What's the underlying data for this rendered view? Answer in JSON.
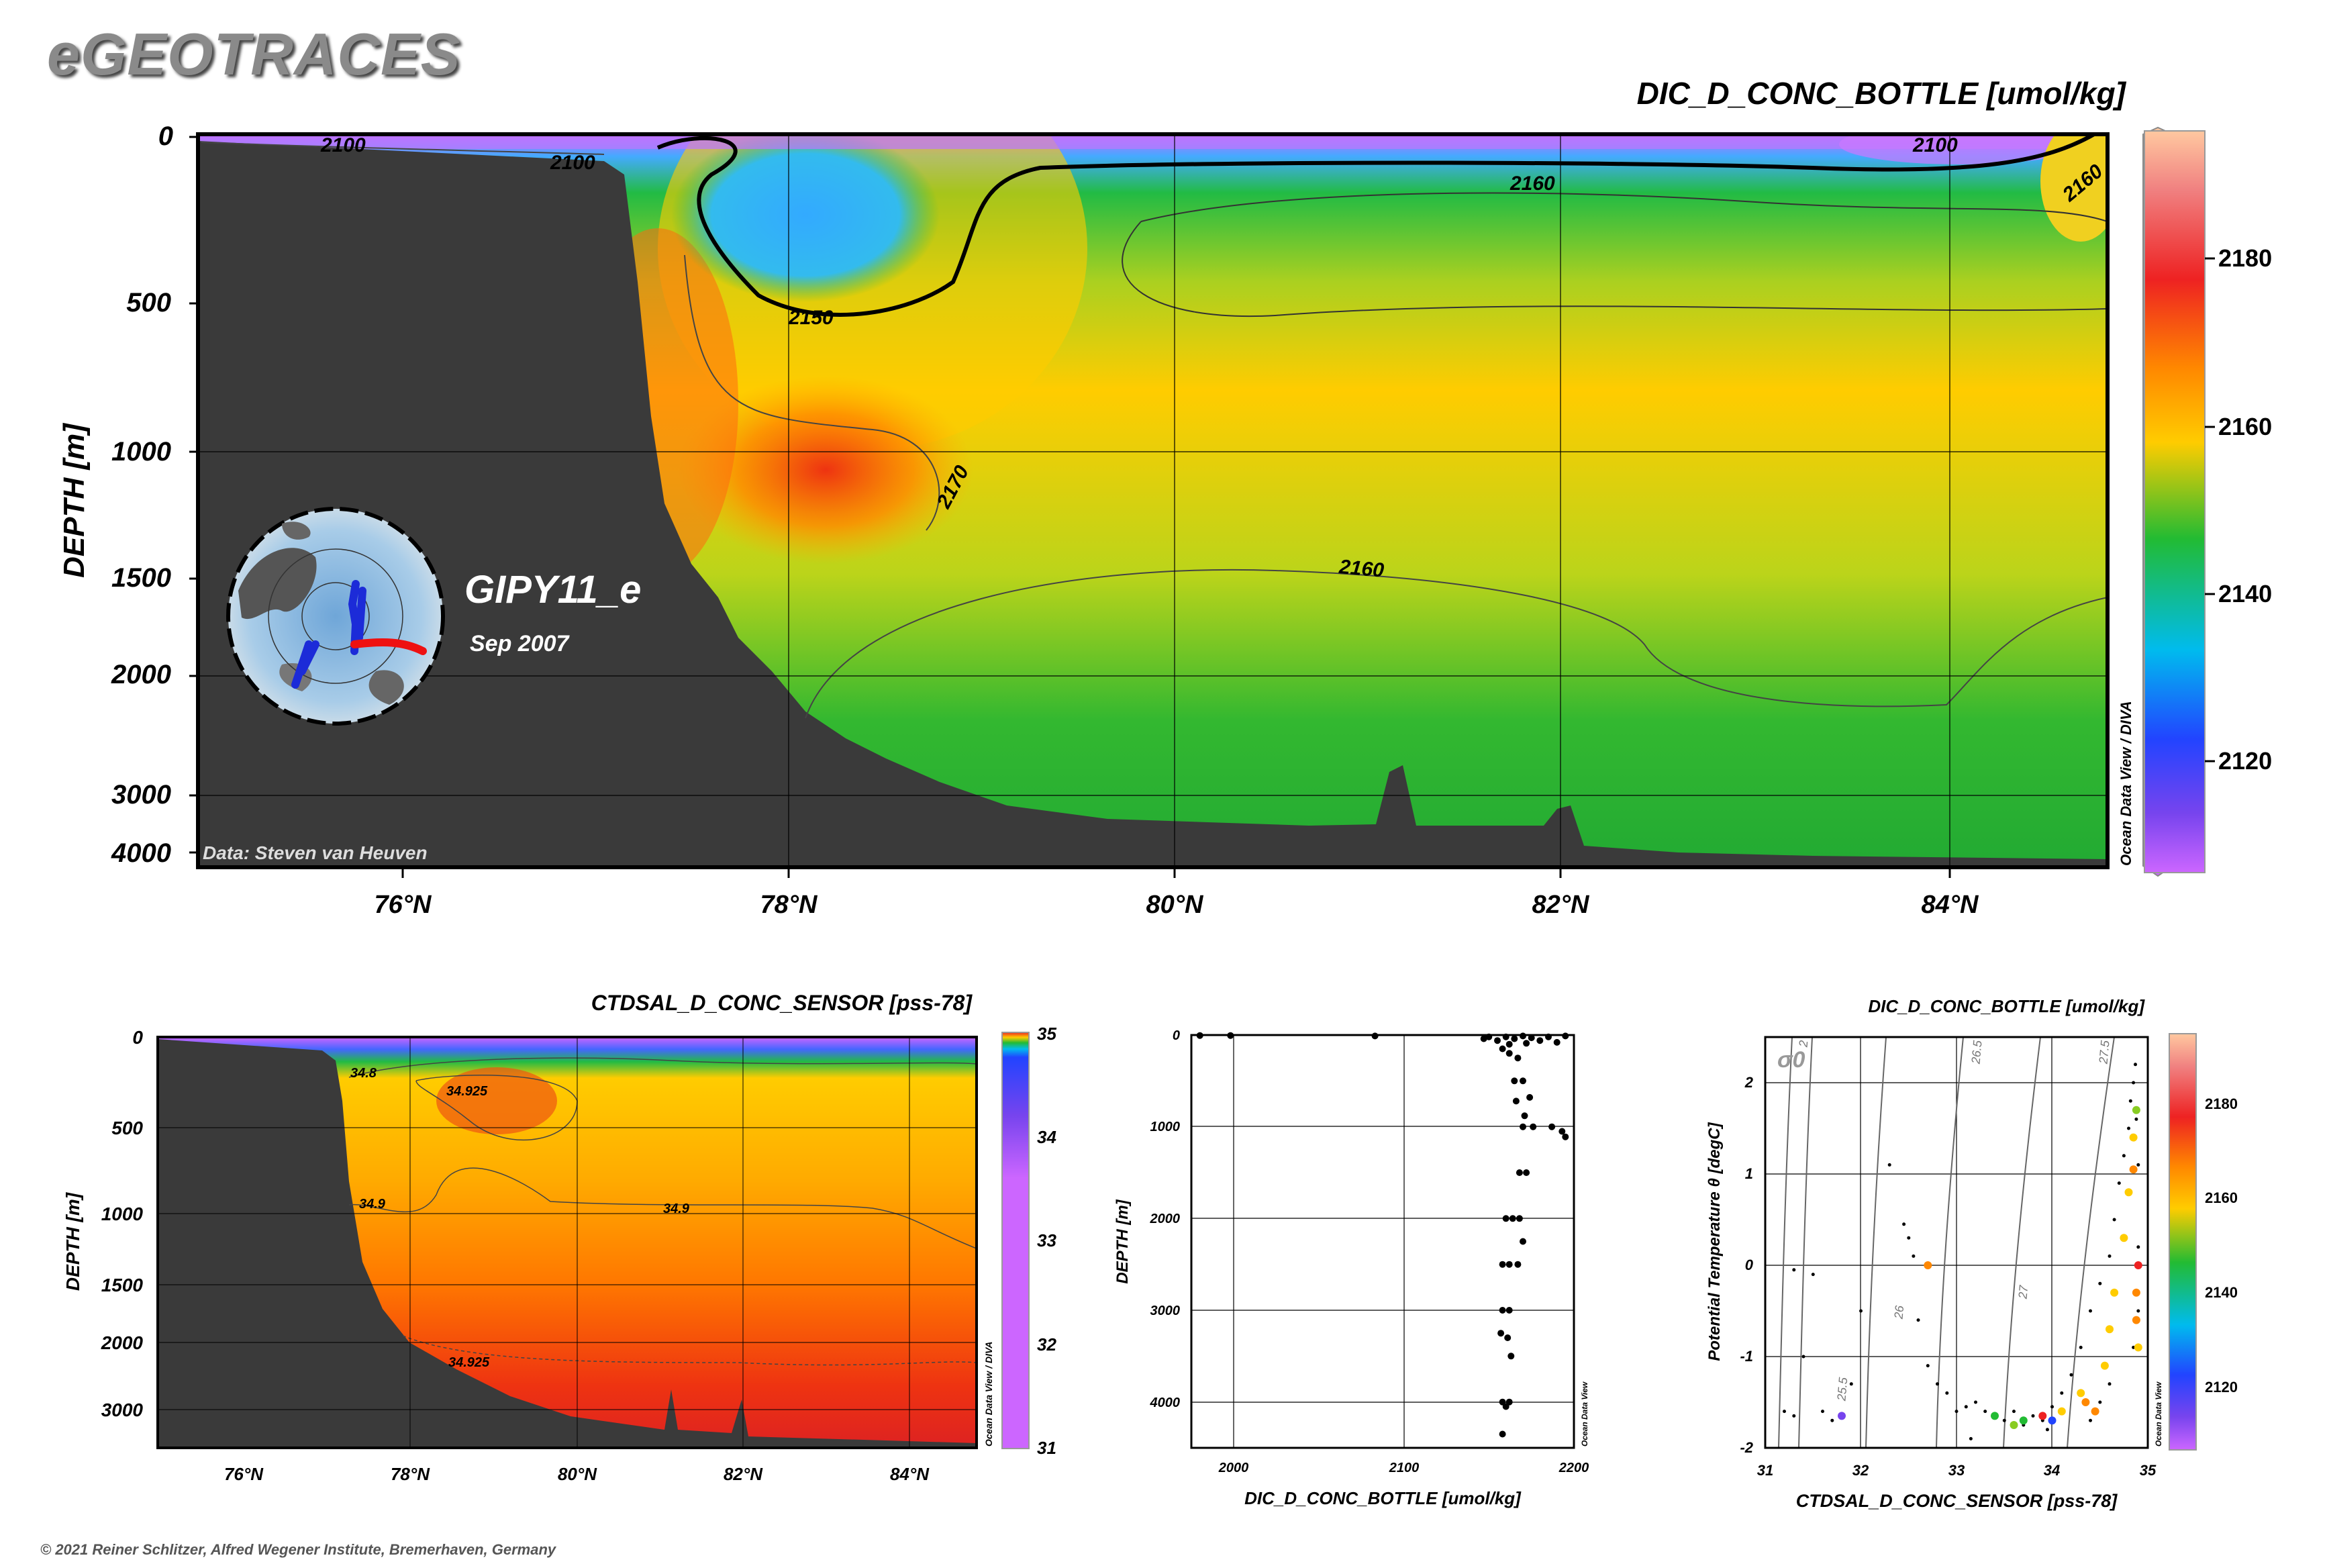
{
  "brand": "eGEOTRACES",
  "copyright": "© 2021 Reiner Schlitzer, Alfred Wegener Institute, Bremerhaven, Germany",
  "main_section": {
    "title": "DIC_D_CONC_BOTTLE [umol/kg]",
    "ylabel": "DEPTH [m]",
    "cruise": "GIPY11_e",
    "date": "Sep 2007",
    "credit": "Data: Steven van Heuven",
    "side_label": "Ocean Data View / DIVA",
    "y_ticks": [
      "0",
      "500",
      "1000",
      "1500",
      "2000",
      "3000",
      "4000"
    ],
    "x_ticks": [
      "76°N",
      "78°N",
      "80°N",
      "82°N",
      "84°N"
    ],
    "colorbar_ticks": [
      "2180",
      "2160",
      "2140",
      "2120"
    ],
    "contour_labels": [
      "2100",
      "2100",
      "2100",
      "2150",
      "2160",
      "2160",
      "2170",
      "2160"
    ]
  },
  "salinity_section": {
    "title": "CTDSAL_D_CONC_SENSOR [pss-78]",
    "ylabel": "DEPTH [m]",
    "side_label": "Ocean Data View / DIVA",
    "y_ticks": [
      "0",
      "500",
      "1000",
      "1500",
      "2000",
      "3000"
    ],
    "x_ticks": [
      "76°N",
      "78°N",
      "80°N",
      "82°N",
      "84°N"
    ],
    "colorbar_ticks": [
      "35",
      "34",
      "33",
      "32",
      "31"
    ],
    "contour_labels": [
      "34.8",
      "34.925",
      "34.9",
      "34.9",
      "34.925"
    ]
  },
  "colors": {
    "land": "#3a3a3a",
    "dic_scale": [
      "#cc66ff",
      "#7744ee",
      "#2244ff",
      "#00bbee",
      "#22bb33",
      "#88cc22",
      "#ffcc00",
      "#ff8800",
      "#ee2222",
      "#f08080",
      "#ffc8a0"
    ],
    "sal_scale": [
      "#cc66ff",
      "#7744ee",
      "#2244ff",
      "#00bbee",
      "#22bb33",
      "#ffcc00",
      "#ff8800",
      "#ee2222"
    ]
  },
  "chart_data": [
    {
      "type": "scatter",
      "title": "",
      "xlabel": "DIC_D_CONC_BOTTLE [umol/kg]",
      "ylabel": "DEPTH [m]",
      "side_label": "Ocean Data View",
      "xlim": [
        1975,
        2200
      ],
      "ylim": [
        4500,
        0
      ],
      "x_ticks": [
        "2000",
        "2100",
        "2200"
      ],
      "y_ticks": [
        "0",
        "1000",
        "2000",
        "3000",
        "4000"
      ],
      "points": [
        [
          1980,
          5
        ],
        [
          1998,
          5
        ],
        [
          2083,
          10
        ],
        [
          2147,
          40
        ],
        [
          2150,
          20
        ],
        [
          2155,
          60
        ],
        [
          2160,
          20
        ],
        [
          2162,
          100
        ],
        [
          2165,
          40
        ],
        [
          2170,
          10
        ],
        [
          2172,
          90
        ],
        [
          2175,
          30
        ],
        [
          2180,
          60
        ],
        [
          2185,
          20
        ],
        [
          2190,
          80
        ],
        [
          2195,
          10
        ],
        [
          2158,
          150
        ],
        [
          2162,
          200
        ],
        [
          2167,
          250
        ],
        [
          2165,
          500
        ],
        [
          2170,
          500
        ],
        [
          2174,
          680
        ],
        [
          2166,
          720
        ],
        [
          2171,
          880
        ],
        [
          2170,
          1000
        ],
        [
          2176,
          1000
        ],
        [
          2187,
          1000
        ],
        [
          2193,
          1050
        ],
        [
          2195,
          1110
        ],
        [
          2168,
          1500
        ],
        [
          2172,
          1500
        ],
        [
          2160,
          2000
        ],
        [
          2164,
          2000
        ],
        [
          2168,
          2000
        ],
        [
          2170,
          2250
        ],
        [
          2158,
          2500
        ],
        [
          2162,
          2500
        ],
        [
          2167,
          2500
        ],
        [
          2158,
          3000
        ],
        [
          2162,
          3000
        ],
        [
          2157,
          3250
        ],
        [
          2161,
          3300
        ],
        [
          2163,
          3500
        ],
        [
          2158,
          4000
        ],
        [
          2162,
          4000
        ],
        [
          2160,
          4050
        ],
        [
          2158,
          4350
        ]
      ]
    },
    {
      "type": "scatter",
      "title": "DIC_D_CONC_BOTTLE [umol/kg]",
      "xlabel": "CTDSAL_D_CONC_SENSOR [pss-78]",
      "ylabel": "Potential Temperature θ [degC]",
      "side_label": "Ocean Data View",
      "xlim": [
        31,
        35
      ],
      "ylim": [
        -2,
        2.5
      ],
      "x_ticks": [
        "31",
        "32",
        "33",
        "34",
        "35"
      ],
      "y_ticks": [
        "-2",
        "-1",
        "0",
        "1",
        "2"
      ],
      "sigma_label": "σ0",
      "isopycnal_labels": [
        "25.5",
        "26",
        "26.5",
        "27",
        "27.5",
        "2"
      ],
      "colorbar_ticks": [
        "2180",
        "2160",
        "2140",
        "2120"
      ],
      "small_points": [
        [
          31.2,
          -1.6
        ],
        [
          31.3,
          -1.65
        ],
        [
          31.3,
          -0.05
        ],
        [
          31.5,
          -0.1
        ],
        [
          31.4,
          -1.0
        ],
        [
          31.6,
          -1.6
        ],
        [
          31.7,
          -1.7
        ],
        [
          31.9,
          -1.3
        ],
        [
          32.0,
          -0.5
        ],
        [
          32.3,
          1.1
        ],
        [
          32.45,
          0.45
        ],
        [
          32.5,
          0.3
        ],
        [
          32.55,
          0.1
        ],
        [
          32.6,
          -0.6
        ],
        [
          32.7,
          -1.1
        ],
        [
          32.8,
          -1.3
        ],
        [
          32.9,
          -1.4
        ],
        [
          33.0,
          -1.6
        ],
        [
          33.1,
          -1.55
        ],
        [
          33.2,
          -1.5
        ],
        [
          33.3,
          -1.6
        ],
        [
          33.4,
          -1.65
        ],
        [
          33.5,
          -1.7
        ],
        [
          33.6,
          -1.6
        ],
        [
          33.7,
          -1.75
        ],
        [
          33.8,
          -1.65
        ],
        [
          33.9,
          -1.7
        ],
        [
          34.0,
          -1.55
        ],
        [
          34.1,
          -1.4
        ],
        [
          34.2,
          -1.2
        ],
        [
          34.3,
          -0.9
        ],
        [
          34.4,
          -0.5
        ],
        [
          34.5,
          -0.2
        ],
        [
          34.6,
          0.1
        ],
        [
          34.65,
          0.5
        ],
        [
          34.7,
          0.9
        ],
        [
          34.75,
          1.2
        ],
        [
          34.8,
          1.5
        ],
        [
          34.82,
          1.8
        ],
        [
          34.85,
          2.0
        ],
        [
          34.87,
          2.2
        ],
        [
          34.88,
          1.6
        ],
        [
          34.9,
          1.1
        ],
        [
          34.9,
          0.2
        ],
        [
          34.9,
          -0.5
        ],
        [
          34.85,
          -0.9
        ],
        [
          34.6,
          -1.3
        ],
        [
          34.5,
          -1.5
        ],
        [
          34.4,
          -1.7
        ],
        [
          33.95,
          -1.8
        ],
        [
          33.15,
          -1.9
        ]
      ],
      "colored_points": [
        [
          32.7,
          0.0,
          2170
        ],
        [
          31.8,
          -1.65,
          2120
        ],
        [
          33.4,
          -1.65,
          2140
        ],
        [
          33.6,
          -1.75,
          2150
        ],
        [
          33.7,
          -1.7,
          2145
        ],
        [
          33.9,
          -1.65,
          2180
        ],
        [
          34.0,
          -1.7,
          2125
        ],
        [
          34.1,
          -1.6,
          2160
        ],
        [
          34.3,
          -1.4,
          2165
        ],
        [
          34.35,
          -1.5,
          2172
        ],
        [
          34.45,
          -1.6,
          2168
        ],
        [
          34.55,
          -1.1,
          2160
        ],
        [
          34.6,
          -0.7,
          2158
        ],
        [
          34.65,
          -0.3,
          2160
        ],
        [
          34.75,
          0.3,
          2160
        ],
        [
          34.8,
          0.8,
          2160
        ],
        [
          34.85,
          1.05,
          2166
        ],
        [
          34.88,
          1.7,
          2156
        ],
        [
          34.9,
          0.0,
          2180
        ],
        [
          34.88,
          -0.3,
          2172
        ],
        [
          34.88,
          -0.6,
          2168
        ],
        [
          34.9,
          -0.9,
          2158
        ],
        [
          34.85,
          1.4,
          2158
        ]
      ]
    }
  ]
}
